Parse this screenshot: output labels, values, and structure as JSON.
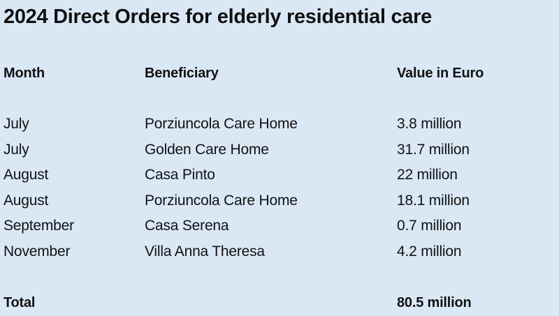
{
  "title": "2024 Direct Orders for elderly residential care",
  "headers": {
    "month": "Month",
    "beneficiary": "Beneficiary",
    "value": "Value in Euro"
  },
  "rows": [
    {
      "month": "July",
      "beneficiary": "Porziuncola Care Home",
      "value": "3.8 million"
    },
    {
      "month": "July",
      "beneficiary": "Golden Care Home",
      "value": "31.7 million"
    },
    {
      "month": "August",
      "beneficiary": "Casa Pinto",
      "value": "22 million"
    },
    {
      "month": "August",
      "beneficiary": "Porziuncola Care Home",
      "value": "18.1 million"
    },
    {
      "month": "September",
      "beneficiary": "Casa Serena",
      "value": "0.7 million"
    },
    {
      "month": "November",
      "beneficiary": "Villa Anna Theresa",
      "value": "4.2 million"
    }
  ],
  "total": {
    "label": "Total",
    "value": "80.5 million"
  },
  "colors": {
    "background": "#dae8f6",
    "text": "#111111"
  }
}
